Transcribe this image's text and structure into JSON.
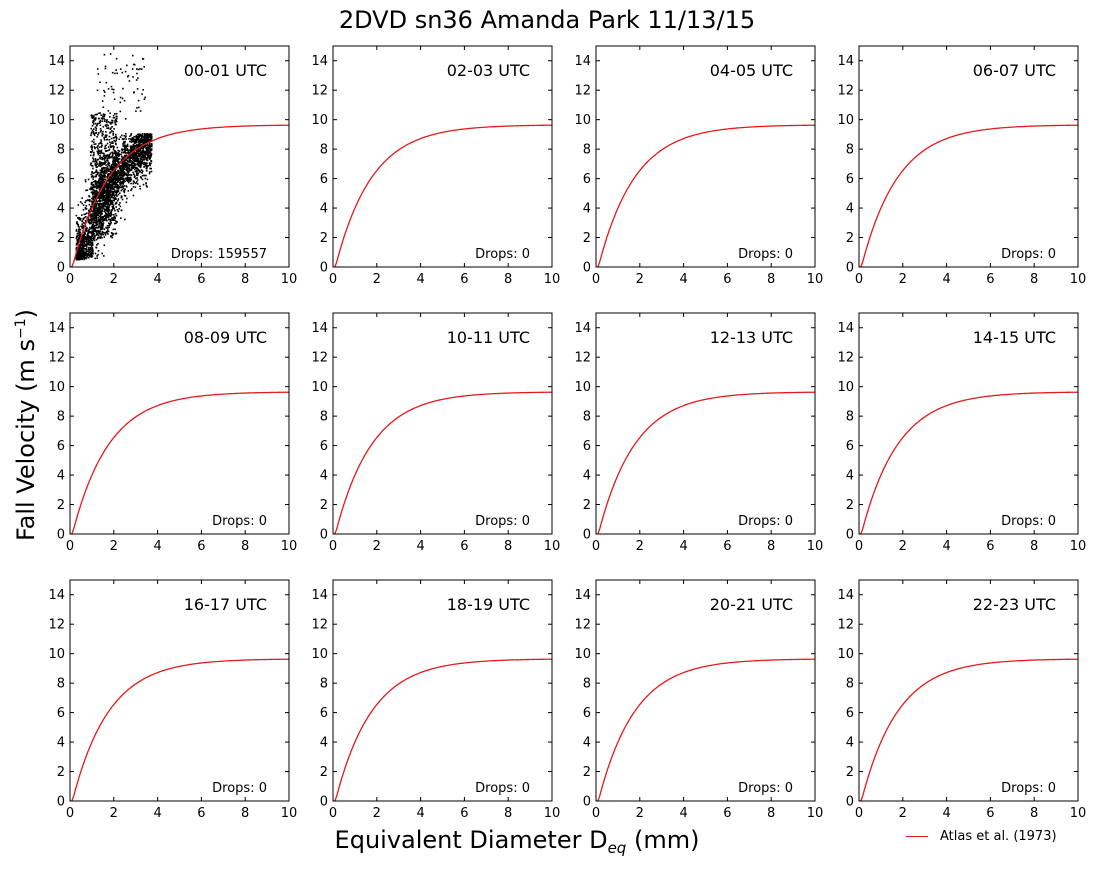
{
  "figure": {
    "title": "2DVD sn36 Amanda Park 11/13/15",
    "ylabel_main": "Fall Velocity (m s",
    "ylabel_sup": "−1",
    "ylabel_end": ")",
    "xlabel_main": "Equivalent Diameter D",
    "xlabel_sub": "eq",
    "xlabel_end": " (mm)",
    "legend_label": "Atlas et al. (1973)"
  },
  "chart_data": {
    "type": "scatter",
    "layout": "3x4 grid of subplots",
    "xlim": [
      0,
      10
    ],
    "ylim": [
      0,
      15
    ],
    "xticks": [
      0,
      2,
      4,
      6,
      8,
      10
    ],
    "yticks": [
      0,
      2,
      4,
      6,
      8,
      10,
      12,
      14
    ],
    "grid": false,
    "legend_placement": "bottom-right, below grid",
    "colors": {
      "fit_line": "#e41a1c",
      "drops": "#000000"
    },
    "fit_line": {
      "name": "Atlas et al. (1973)",
      "formula": "v = 9.65 - 10.3*exp(-0.6*D)"
    },
    "panels": [
      {
        "label": "00-01 UTC",
        "drops_text": "Drops: 159557",
        "drop_count": 159557,
        "has_scatter": true
      },
      {
        "label": "02-03 UTC",
        "drops_text": "Drops: 0",
        "drop_count": 0,
        "has_scatter": false
      },
      {
        "label": "04-05 UTC",
        "drops_text": "Drops: 0",
        "drop_count": 0,
        "has_scatter": false
      },
      {
        "label": "06-07 UTC",
        "drops_text": "Drops: 0",
        "drop_count": 0,
        "has_scatter": false
      },
      {
        "label": "08-09 UTC",
        "drops_text": "Drops: 0",
        "drop_count": 0,
        "has_scatter": false
      },
      {
        "label": "10-11 UTC",
        "drops_text": "Drops: 0",
        "drop_count": 0,
        "has_scatter": false
      },
      {
        "label": "12-13 UTC",
        "drops_text": "Drops: 0",
        "drop_count": 0,
        "has_scatter": false
      },
      {
        "label": "14-15 UTC",
        "drops_text": "Drops: 0",
        "drop_count": 0,
        "has_scatter": false
      },
      {
        "label": "16-17 UTC",
        "drops_text": "Drops: 0",
        "drop_count": 0,
        "has_scatter": false
      },
      {
        "label": "18-19 UTC",
        "drops_text": "Drops: 0",
        "drop_count": 0,
        "has_scatter": false
      },
      {
        "label": "20-21 UTC",
        "drops_text": "Drops: 0",
        "drop_count": 0,
        "has_scatter": false
      },
      {
        "label": "22-23 UTC",
        "drops_text": "Drops: 0",
        "drop_count": 0,
        "has_scatter": false
      }
    ],
    "scatter_envelope": {
      "diameter_range": [
        0.2,
        3.8
      ],
      "velocity_range": [
        0.5,
        14.6
      ],
      "description_points": [
        [
          0.3,
          0.6
        ],
        [
          1.0,
          2.5
        ],
        [
          1.5,
          5.0
        ],
        [
          2.0,
          7.0
        ],
        [
          3.0,
          8.0
        ],
        [
          3.7,
          8.5
        ],
        [
          1.5,
          12.0
        ],
        [
          2.5,
          14.5
        ]
      ]
    }
  }
}
